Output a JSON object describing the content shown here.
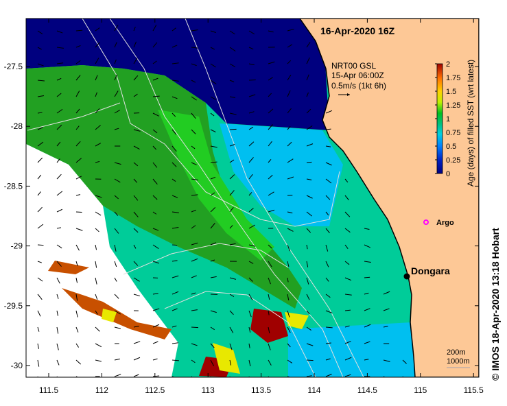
{
  "title": "16-Apr-2020 16Z",
  "current_legend": {
    "line1": "NRT00 GSL",
    "line2": "15-Apr 06:00Z",
    "line3": "0.5m/s (1kt 6h)"
  },
  "colorbar": {
    "label": "Age (days) of filled SST (wrt latest)",
    "ticks": [
      "2",
      "1.75",
      "1.5",
      "1.25",
      "1",
      "0.75",
      "0.5",
      "0.25",
      "0"
    ],
    "range": [
      0,
      2
    ]
  },
  "markers": {
    "argo": "Argo",
    "town": "Dongara"
  },
  "isobaths": {
    "a": "200m",
    "b": "1000m"
  },
  "credit": "© IMOS 18-Apr-2020 13:18 Hobart",
  "x_ticks": [
    "111.5",
    "112",
    "112.5",
    "113",
    "113.5",
    "114",
    "114.5",
    "115",
    "115.5"
  ],
  "y_ticks": [
    "-27.5",
    "-28",
    "-28.5",
    "-29",
    "-29.5",
    "-30"
  ],
  "colors": {
    "land": "#fdc896",
    "ocean_old": "#00007f",
    "ocean_mid": "#00cc99",
    "ocean_cyan": "#00bff0",
    "green": "#22a022",
    "argo": "#ff00ff"
  }
}
